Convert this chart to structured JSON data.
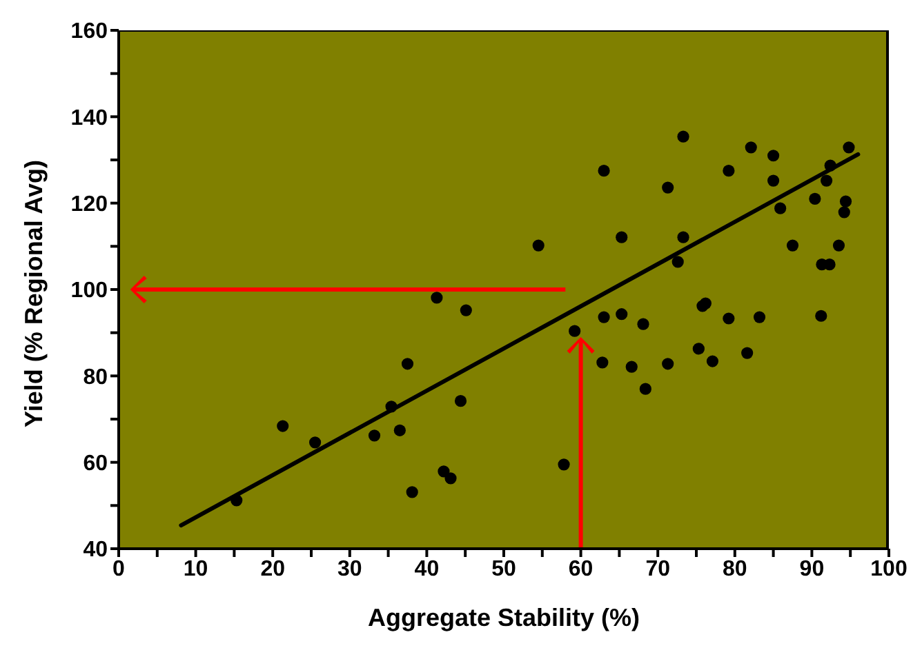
{
  "chart_data": {
    "type": "scatter",
    "xlabel": "Aggregate Stability (%)",
    "ylabel": "Yield (% Regional Avg)",
    "xlim": [
      0,
      100
    ],
    "ylim": [
      40,
      160
    ],
    "xticks": [
      0,
      {
        "value": 5,
        "label": null
      },
      10,
      {
        "value": 15,
        "label": null
      },
      20,
      {
        "value": 25,
        "label": null
      },
      30,
      {
        "value": 35,
        "label": null
      },
      40,
      {
        "value": 45,
        "label": null
      },
      50,
      {
        "value": 55,
        "label": null
      },
      60,
      {
        "value": 65,
        "label": null
      },
      70,
      {
        "value": 75,
        "label": null
      },
      80,
      {
        "value": 85,
        "label": null
      },
      90,
      {
        "value": 95,
        "label": null
      },
      100
    ],
    "yticks": [
      40,
      {
        "value": 50,
        "label": null
      },
      60,
      {
        "value": 70,
        "label": null
      },
      80,
      {
        "value": 90,
        "label": null
      },
      100,
      {
        "value": 110,
        "label": null
      },
      120,
      {
        "value": 130,
        "label": null
      },
      140,
      {
        "value": 150,
        "label": null
      },
      160
    ],
    "grid": false,
    "legend": false,
    "series": [
      {
        "marker": "circle",
        "color": "#000000",
        "x": [
          15.3,
          21.3,
          25.5,
          33.2,
          35.4,
          36.5,
          37.5,
          38.1,
          41.3,
          42.2,
          43.1,
          44.4,
          45.1,
          54.5,
          57.8,
          59.2,
          62.8,
          63.0,
          63.0,
          65.3,
          65.3,
          66.6,
          68.1,
          68.4,
          71.3,
          71.3,
          72.6,
          73.3,
          73.3,
          75.3,
          75.8,
          76.2,
          77.1,
          79.2,
          79.2,
          81.6,
          82.1,
          83.2,
          85.0,
          85.0,
          85.9,
          87.5,
          90.4,
          91.2,
          91.3,
          91.9,
          92.3,
          92.4,
          93.5,
          94.2,
          94.4,
          94.8
        ],
        "values": [
          51.2,
          68.4,
          64.6,
          66.2,
          72.9,
          67.4,
          82.8,
          53.1,
          98.1,
          57.9,
          56.3,
          74.2,
          95.2,
          110.2,
          59.5,
          90.4,
          83.1,
          127.5,
          93.6,
          94.3,
          112.1,
          82.1,
          92.0,
          77.0,
          82.8,
          123.6,
          106.4,
          135.4,
          112.1,
          86.3,
          96.2,
          96.8,
          83.4,
          127.5,
          93.3,
          85.3,
          132.9,
          93.6,
          131.0,
          125.2,
          118.8,
          110.2,
          121.0,
          93.9,
          105.8,
          125.2,
          105.8,
          128.7,
          110.2,
          117.9,
          120.4,
          132.9
        ]
      },
      {
        "type": "line",
        "marker": "none",
        "line_style": "solid",
        "color": "#000000",
        "x": [
          8.1,
          96.0
        ],
        "values": [
          45.4,
          131.3
        ]
      }
    ]
  }
}
